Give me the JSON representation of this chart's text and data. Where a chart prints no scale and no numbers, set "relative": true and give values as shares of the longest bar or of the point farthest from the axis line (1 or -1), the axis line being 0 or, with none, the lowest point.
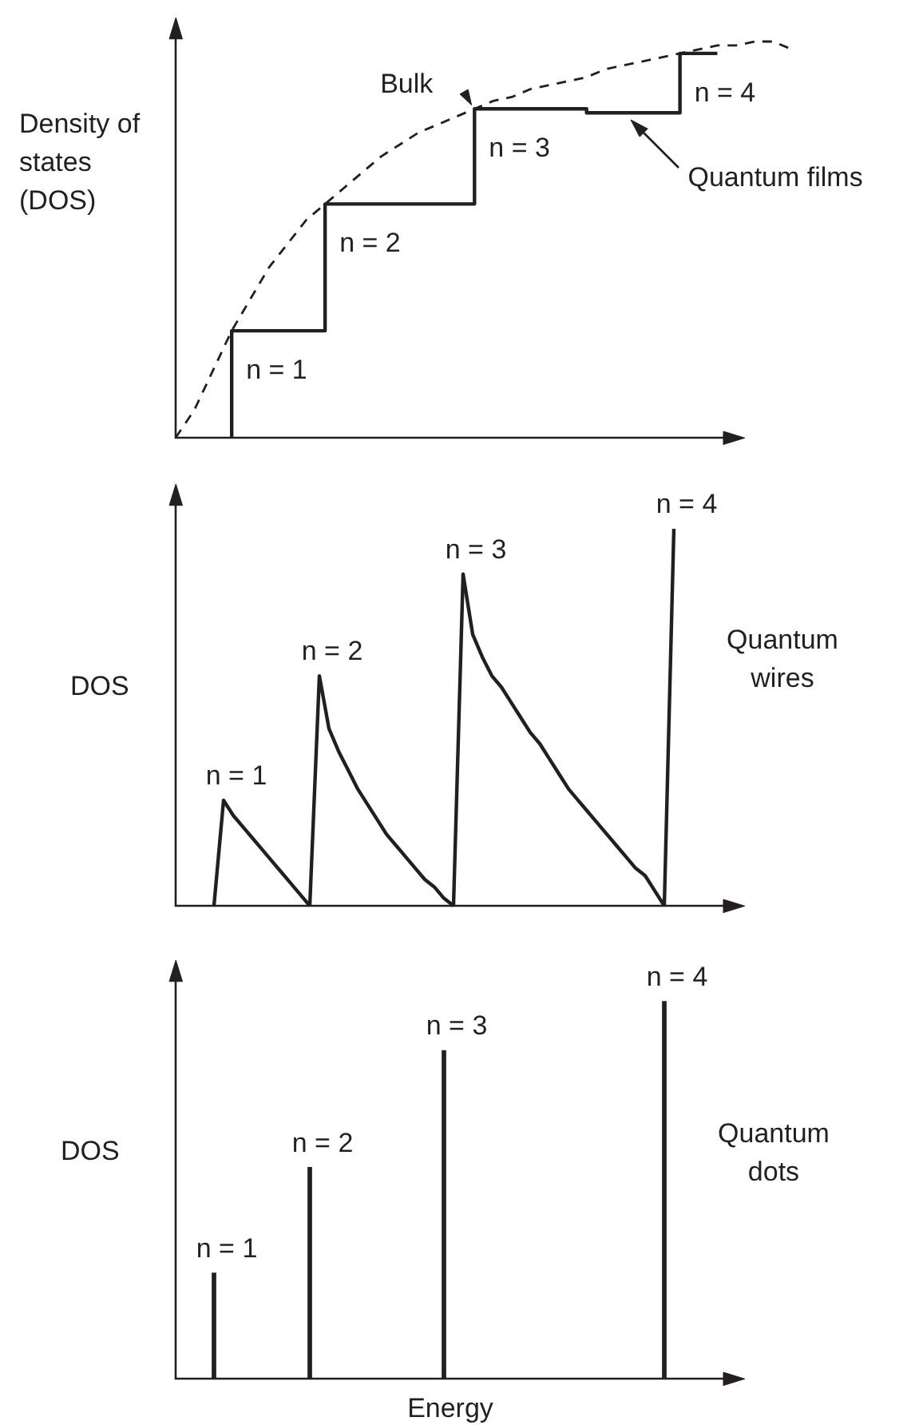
{
  "chart_data": [
    {
      "type": "step",
      "relative": true,
      "ylabel": "Density of states (DOS)",
      "annotations": [
        "n = 1",
        "n = 2",
        "n = 3",
        "n = 4"
      ],
      "categories": [
        null,
        null,
        null,
        null,
        null,
        null,
        null,
        null,
        null,
        null,
        null,
        null,
        null,
        null,
        null,
        null,
        null,
        null,
        null,
        null,
        null,
        null,
        null,
        null,
        null,
        null,
        null,
        null,
        null,
        null,
        null,
        null,
        null,
        null
      ],
      "series": [
        {
          "name": "Quantum films",
          "color": "#231f20",
          "values": [
            null,
            null,
            null,
            0,
            0.27,
            0.27,
            0.27,
            0.27,
            0.27,
            0.59,
            0.59,
            0.59,
            0.59,
            0.59,
            0.59,
            0.59,
            0.59,
            0.83,
            0.83,
            0.83,
            0.83,
            0.83,
            0.83,
            0.82,
            0.82,
            0.82,
            0.82,
            0.82,
            0.97,
            0.97,
            null,
            null,
            null,
            null
          ]
        },
        {
          "name": "Bulk",
          "type": "line",
          "line_style": "dashed",
          "color": "#231f20",
          "values": [
            0,
            0.07,
            0.17,
            0.27,
            0.35,
            0.43,
            0.49,
            0.55,
            0.59,
            0.63,
            0.67,
            0.71,
            0.74,
            0.77,
            0.79,
            0.81,
            0.83,
            0.85,
            0.86,
            0.88,
            0.89,
            0.9,
            0.91,
            0.93,
            0.94,
            0.95,
            0.96,
            0.97,
            0.98,
            0.99,
            0.99,
            1,
            1,
            0.98
          ]
        }
      ]
    },
    {
      "type": "line",
      "relative": true,
      "ylabel": "DOS",
      "annotations": [
        "Quantum wires"
      ],
      "categories": [
        null,
        null,
        null,
        null,
        null,
        null,
        null,
        null,
        null,
        null,
        null,
        null,
        null,
        null,
        null,
        null,
        null,
        null,
        null,
        null,
        null,
        null,
        null,
        null,
        null,
        null,
        null,
        null,
        null,
        null,
        null,
        null,
        null,
        null,
        null,
        null,
        null,
        null,
        null,
        null,
        null,
        null,
        null,
        null,
        null,
        null,
        null,
        null,
        null,
        null,
        null,
        null,
        null,
        null,
        null,
        null,
        null,
        null,
        null,
        null
      ],
      "series": [
        {
          "name": "n = 1",
          "color": "#231f20",
          "values": [
            null,
            null,
            null,
            null,
            0,
            0.28,
            0.24,
            0.21,
            0.18,
            0.15,
            0.12,
            0.09,
            0.06,
            0.03,
            0,
            null,
            null,
            null,
            null,
            null,
            null,
            null,
            null,
            null,
            null,
            null,
            null,
            null,
            null,
            null,
            null,
            null,
            null,
            null,
            null,
            null,
            null,
            null,
            null,
            null,
            null,
            null,
            null,
            null,
            null,
            null,
            null,
            null,
            null,
            null,
            null,
            null,
            null,
            null,
            null,
            null,
            null,
            null,
            null,
            null
          ]
        },
        {
          "name": "n = 2",
          "color": "#231f20",
          "values": [
            null,
            null,
            null,
            null,
            null,
            null,
            null,
            null,
            null,
            null,
            null,
            null,
            null,
            null,
            0,
            0.61,
            0.47,
            0.41,
            0.36,
            0.31,
            0.27,
            0.23,
            0.19,
            0.16,
            0.13,
            0.1,
            0.07,
            0.05,
            0.02,
            0,
            null,
            null,
            null,
            null,
            null,
            null,
            null,
            null,
            null,
            null,
            null,
            null,
            null,
            null,
            null,
            null,
            null,
            null,
            null,
            null,
            null,
            null,
            null,
            null,
            null,
            null,
            null,
            null,
            null,
            null
          ]
        },
        {
          "name": "n = 3",
          "color": "#231f20",
          "values": [
            null,
            null,
            null,
            null,
            null,
            null,
            null,
            null,
            null,
            null,
            null,
            null,
            null,
            null,
            null,
            null,
            null,
            null,
            null,
            null,
            null,
            null,
            null,
            null,
            null,
            null,
            null,
            null,
            null,
            0,
            0.88,
            0.72,
            0.66,
            0.61,
            0.58,
            0.54,
            0.5,
            0.46,
            0.43,
            0.39,
            0.35,
            0.31,
            0.28,
            0.25,
            0.22,
            0.19,
            0.16,
            0.13,
            0.1,
            0.08,
            0.04,
            0,
            null,
            null,
            null,
            null,
            null,
            null,
            null,
            null
          ]
        },
        {
          "name": "n = 4",
          "color": "#231f20",
          "values": [
            null,
            null,
            null,
            null,
            null,
            null,
            null,
            null,
            null,
            null,
            null,
            null,
            null,
            null,
            null,
            null,
            null,
            null,
            null,
            null,
            null,
            null,
            null,
            null,
            null,
            null,
            null,
            null,
            null,
            null,
            null,
            null,
            null,
            null,
            null,
            null,
            null,
            null,
            null,
            null,
            null,
            null,
            null,
            null,
            null,
            null,
            null,
            null,
            null,
            null,
            null,
            0,
            1,
            null,
            null,
            null,
            null,
            null,
            null,
            null
          ]
        }
      ]
    },
    {
      "type": "bar",
      "relative": true,
      "ylabel": "DOS",
      "xlabel": "Energy",
      "annotations": [
        "Quantum dots"
      ],
      "categories": [
        null,
        null,
        null,
        null,
        null,
        null,
        null,
        null,
        null,
        null,
        null,
        null,
        null,
        null,
        null,
        null,
        null,
        null,
        null,
        null,
        null,
        null,
        null,
        null,
        null,
        null,
        null,
        null,
        null,
        null,
        null,
        null,
        null,
        null,
        null,
        null,
        null,
        null,
        null,
        null,
        null,
        null,
        null,
        null,
        null,
        null,
        null,
        null,
        null,
        null,
        null,
        null,
        null,
        null,
        null,
        null,
        null,
        null,
        null,
        null
      ],
      "series": [
        {
          "name": "n = 1",
          "color": "#231f20",
          "values": [
            null,
            null,
            null,
            null,
            0.28,
            null,
            null,
            null,
            null,
            null,
            null,
            null,
            null,
            null,
            null,
            null,
            null,
            null,
            null,
            null,
            null,
            null,
            null,
            null,
            null,
            null,
            null,
            null,
            null,
            null,
            null,
            null,
            null,
            null,
            null,
            null,
            null,
            null,
            null,
            null,
            null,
            null,
            null,
            null,
            null,
            null,
            null,
            null,
            null,
            null,
            null,
            null,
            null,
            null,
            null,
            null,
            null,
            null,
            null,
            null
          ]
        },
        {
          "name": "n = 2",
          "color": "#231f20",
          "values": [
            null,
            null,
            null,
            null,
            null,
            null,
            null,
            null,
            null,
            null,
            null,
            null,
            null,
            null,
            0.56,
            null,
            null,
            null,
            null,
            null,
            null,
            null,
            null,
            null,
            null,
            null,
            null,
            null,
            null,
            null,
            null,
            null,
            null,
            null,
            null,
            null,
            null,
            null,
            null,
            null,
            null,
            null,
            null,
            null,
            null,
            null,
            null,
            null,
            null,
            null,
            null,
            null,
            null,
            null,
            null,
            null,
            null,
            null,
            null,
            null
          ]
        },
        {
          "name": "n = 3",
          "color": "#231f20",
          "values": [
            null,
            null,
            null,
            null,
            null,
            null,
            null,
            null,
            null,
            null,
            null,
            null,
            null,
            null,
            null,
            null,
            null,
            null,
            null,
            null,
            null,
            null,
            null,
            null,
            null,
            null,
            null,
            null,
            0.87,
            null,
            null,
            null,
            null,
            null,
            null,
            null,
            null,
            null,
            null,
            null,
            null,
            null,
            null,
            null,
            null,
            null,
            null,
            null,
            null,
            null,
            null,
            null,
            null,
            null,
            null,
            null,
            null,
            null,
            null,
            null
          ]
        },
        {
          "name": "n = 4",
          "color": "#231f20",
          "values": [
            null,
            null,
            null,
            null,
            null,
            null,
            null,
            null,
            null,
            null,
            null,
            null,
            null,
            null,
            null,
            null,
            null,
            null,
            null,
            null,
            null,
            null,
            null,
            null,
            null,
            null,
            null,
            null,
            null,
            null,
            null,
            null,
            null,
            null,
            null,
            null,
            null,
            null,
            null,
            null,
            null,
            null,
            null,
            null,
            null,
            null,
            null,
            null,
            null,
            null,
            null,
            1,
            null,
            null,
            null,
            null,
            null,
            null,
            null,
            null
          ]
        }
      ]
    }
  ]
}
